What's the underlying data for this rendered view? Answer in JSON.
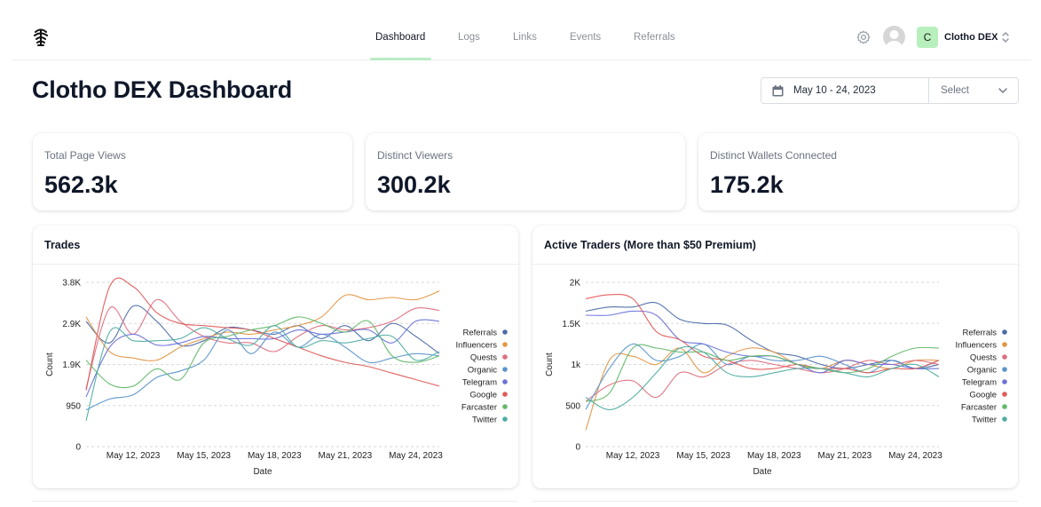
{
  "nav": {
    "items": [
      {
        "label": "Dashboard",
        "active": true
      },
      {
        "label": "Logs",
        "active": false
      },
      {
        "label": "Links",
        "active": false
      },
      {
        "label": "Events",
        "active": false
      },
      {
        "label": "Referrals",
        "active": false
      }
    ]
  },
  "account": {
    "initial": "C",
    "name": "Clotho DEX"
  },
  "page": {
    "title": "Clotho DEX Dashboard"
  },
  "filter": {
    "date_range": "May 10 - 24, 2023",
    "select_placeholder": "Select"
  },
  "kpis": [
    {
      "label": "Total Page Views",
      "value": "562.3k"
    },
    {
      "label": "Distinct Viewers",
      "value": "300.2k"
    },
    {
      "label": "Distinct Wallets Connected",
      "value": "175.2k"
    }
  ],
  "colors": {
    "accent_green": "#b8f0bd",
    "underline": "#b9ecc3"
  },
  "chart_data": [
    {
      "type": "line",
      "title": "Trades",
      "xlabel": "Date",
      "ylabel": "Count",
      "x": [
        "May 10",
        "May 11",
        "May 12",
        "May 13",
        "May 14",
        "May 15",
        "May 16",
        "May 17",
        "May 18",
        "May 19",
        "May 20",
        "May 21",
        "May 22",
        "May 23",
        "May 24",
        "May 25"
      ],
      "xticks": [
        "May 12, 2023",
        "May 15, 2023",
        "May 18, 2023",
        "May 21, 2023",
        "May 24, 2023"
      ],
      "xtick_index": [
        2,
        5,
        8,
        11,
        14
      ],
      "yticks": [
        0,
        950,
        1900,
        2850,
        3800
      ],
      "ytick_labels": [
        "0",
        "950",
        "1.9K",
        "2.9K",
        "3.8K"
      ],
      "ylim": [
        0,
        3800
      ],
      "series": [
        {
          "name": "Referrals",
          "color": "#4c6ca8",
          "values": [
            2900,
            2400,
            3250,
            2900,
            2350,
            2450,
            2750,
            2700,
            2600,
            2800,
            2500,
            2800,
            2450,
            2850,
            2550,
            2150
          ]
        },
        {
          "name": "Influencers",
          "color": "#e29645",
          "values": [
            3000,
            2200,
            2050,
            2000,
            2300,
            2500,
            2650,
            2600,
            2700,
            2800,
            3000,
            3500,
            3400,
            3450,
            3400,
            3600
          ]
        },
        {
          "name": "Quests",
          "color": "#de6f7f",
          "values": [
            1350,
            3200,
            2600,
            3400,
            2900,
            2550,
            2400,
            2400,
            2200,
            2550,
            2800,
            2700,
            2750,
            2900,
            3200,
            3150
          ]
        },
        {
          "name": "Organic",
          "color": "#5b95cb",
          "values": [
            850,
            1100,
            1200,
            1600,
            1750,
            2000,
            2700,
            2150,
            2650,
            2300,
            2600,
            2300,
            1950,
            2050,
            2150,
            2100
          ]
        },
        {
          "name": "Telegram",
          "color": "#6a72d8",
          "values": [
            1150,
            2300,
            2600,
            2350,
            2400,
            2550,
            2500,
            2500,
            2500,
            2700,
            2600,
            2650,
            2700,
            2400,
            2900,
            2900
          ]
        },
        {
          "name": "Google",
          "color": "#e05a5a",
          "values": [
            1300,
            3700,
            3700,
            3100,
            2850,
            2800,
            2750,
            2700,
            2500,
            2300,
            2100,
            1950,
            1850,
            1700,
            1550,
            1400
          ]
        },
        {
          "name": "Farcaster",
          "color": "#62b86a",
          "values": [
            2000,
            1450,
            1400,
            1800,
            1550,
            2400,
            2550,
            2700,
            2800,
            3000,
            2850,
            2650,
            2900,
            2100,
            1950,
            2100
          ]
        },
        {
          "name": "Twitter",
          "color": "#4fada3",
          "values": [
            600,
            2650,
            2450,
            2450,
            2500,
            2750,
            2500,
            2350,
            2800,
            2300,
            2450,
            2400,
            2500,
            2550,
            2000,
            2200
          ]
        }
      ]
    },
    {
      "type": "line",
      "title": "Active Traders (More than $50 Premium)",
      "xlabel": "Date",
      "ylabel": "Count",
      "x": [
        "May 10",
        "May 11",
        "May 12",
        "May 13",
        "May 14",
        "May 15",
        "May 16",
        "May 17",
        "May 18",
        "May 19",
        "May 20",
        "May 21",
        "May 22",
        "May 23",
        "May 24",
        "May 25"
      ],
      "xticks": [
        "May 12, 2023",
        "May 15, 2023",
        "May 18, 2023",
        "May 21, 2023",
        "May 24, 2023"
      ],
      "xtick_index": [
        2,
        5,
        8,
        11,
        14
      ],
      "yticks": [
        0,
        500,
        1000,
        1500,
        2000
      ],
      "ytick_labels": [
        "0",
        "500",
        "1k",
        "1.5K",
        "2K"
      ],
      "ylim": [
        0,
        2000
      ],
      "series": [
        {
          "name": "Referrals",
          "color": "#4c6ca8",
          "values": [
            1650,
            1700,
            1700,
            1750,
            1550,
            1500,
            1480,
            1300,
            1150,
            1100,
            1000,
            950,
            1000,
            1050,
            950,
            1000
          ]
        },
        {
          "name": "Influencers",
          "color": "#e29645",
          "values": [
            200,
            1050,
            1100,
            1000,
            1200,
            900,
            1100,
            1200,
            1150,
            1000,
            950,
            1050,
            1000,
            950,
            1050,
            1050
          ]
        },
        {
          "name": "Quests",
          "color": "#de6f7f",
          "values": [
            550,
            750,
            800,
            600,
            900,
            850,
            1000,
            1050,
            1000,
            950,
            900,
            950,
            1050,
            1000,
            1050,
            1000
          ]
        },
        {
          "name": "Organic",
          "color": "#5b95cb",
          "values": [
            450,
            950,
            1250,
            1050,
            1100,
            1250,
            1000,
            1100,
            1050,
            1050,
            1100,
            1000,
            900,
            1050,
            950,
            1050
          ]
        },
        {
          "name": "Telegram",
          "color": "#6a72d8",
          "values": [
            1600,
            1600,
            1650,
            1600,
            1300,
            1250,
            1150,
            1100,
            1100,
            1000,
            900,
            1050,
            1000,
            1000,
            950,
            950
          ]
        },
        {
          "name": "Google",
          "color": "#e05a5a",
          "values": [
            1800,
            1850,
            1800,
            1400,
            1300,
            1100,
            1050,
            950,
            950,
            1000,
            950,
            950,
            900,
            950,
            950,
            1050
          ]
        },
        {
          "name": "Farcaster",
          "color": "#62b86a",
          "values": [
            550,
            650,
            1200,
            1200,
            1150,
            1150,
            1050,
            1100,
            1100,
            1000,
            950,
            900,
            950,
            1100,
            1200,
            1200
          ]
        },
        {
          "name": "Twitter",
          "color": "#4fada3",
          "values": [
            600,
            450,
            600,
            900,
            1200,
            1150,
            900,
            850,
            900,
            950,
            950,
            900,
            850,
            950,
            1000,
            850
          ]
        }
      ]
    }
  ]
}
